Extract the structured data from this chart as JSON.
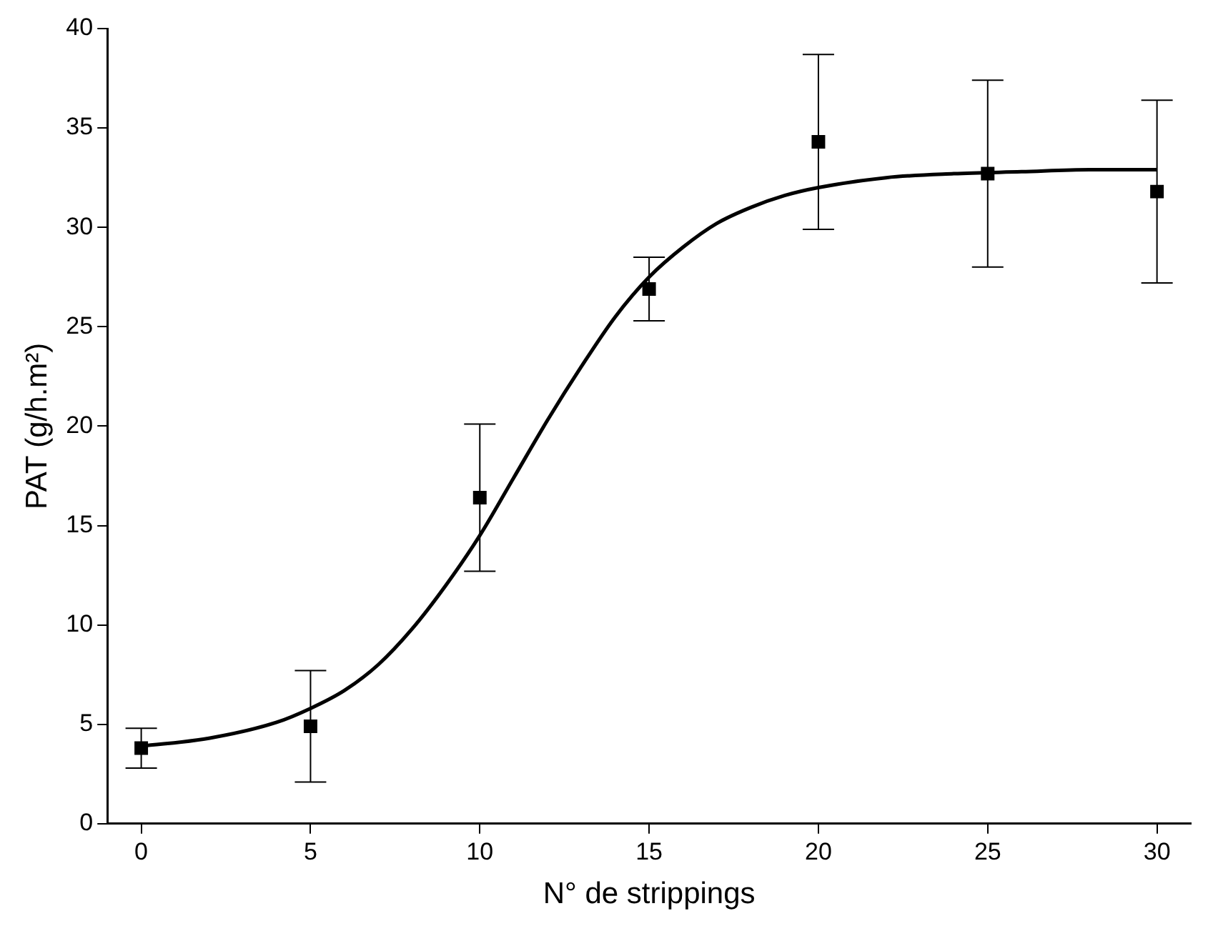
{
  "chart_data": {
    "type": "scatter",
    "xlabel": "N° de strippings",
    "ylabel": "PAT (g/h.m²)",
    "xlim": [
      -1,
      31
    ],
    "xticks": [
      0,
      5,
      10,
      15,
      20,
      25,
      30
    ],
    "ylim": [
      0,
      40
    ],
    "yticks": [
      0,
      5,
      10,
      15,
      20,
      25,
      30,
      35,
      40
    ],
    "grid": false,
    "legend": false,
    "series": [
      {
        "type": "scatter",
        "color": "#000000",
        "marker": "square",
        "x": [
          0,
          5,
          10,
          15,
          20,
          25,
          30
        ],
        "values": [
          3.8,
          4.9,
          16.4,
          26.9,
          34.3,
          32.7,
          31.8
        ],
        "errors": [
          1.0,
          2.8,
          3.7,
          1.6,
          4.4,
          4.7,
          4.6
        ]
      },
      {
        "type": "line",
        "color": "#000000",
        "marker": "none",
        "line_style": "solid",
        "x": [
          0,
          2,
          4,
          5,
          6,
          7,
          8,
          9,
          10,
          11,
          12,
          13,
          14,
          15,
          16,
          17,
          18,
          19,
          20,
          22,
          24,
          26,
          28,
          30
        ],
        "values": [
          3.9,
          4.3,
          5.1,
          5.8,
          6.7,
          8.0,
          9.8,
          12.0,
          14.5,
          17.4,
          20.3,
          23.0,
          25.5,
          27.5,
          29.0,
          30.2,
          31.0,
          31.6,
          32.0,
          32.5,
          32.7,
          32.8,
          32.9,
          32.9
        ]
      }
    ]
  }
}
